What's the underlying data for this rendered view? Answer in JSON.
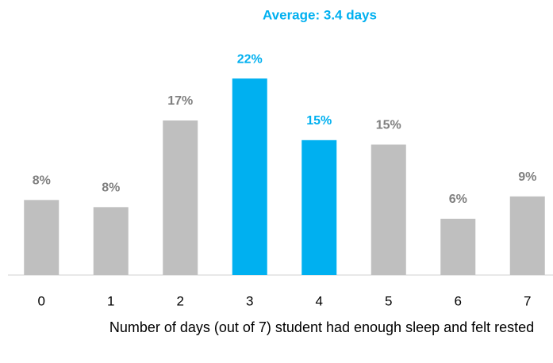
{
  "chart_data": {
    "type": "bar",
    "annotation": "Average: 3.4 days",
    "x_label": "Number of days (out of 7) student had enough sleep and felt rested",
    "categories": [
      "0",
      "1",
      "2",
      "3",
      "4",
      "5",
      "6",
      "7"
    ],
    "values": [
      8.4,
      7.6,
      17.3,
      22,
      15.1,
      14.6,
      6.3,
      8.8
    ],
    "value_labels": [
      "8%",
      "8%",
      "17%",
      "22%",
      "15%",
      "15%",
      "6%",
      "9%"
    ],
    "colors": [
      "#bfbfbf",
      "#bfbfbf",
      "#bfbfbf",
      "#00b0f0",
      "#00b0f0",
      "#bfbfbf",
      "#bfbfbf",
      "#bfbfbf"
    ],
    "label_colors": [
      "#808080",
      "#808080",
      "#808080",
      "#00b0f0",
      "#00b0f0",
      "#808080",
      "#808080",
      "#808080"
    ],
    "annotation_color": "#00b0f0"
  }
}
